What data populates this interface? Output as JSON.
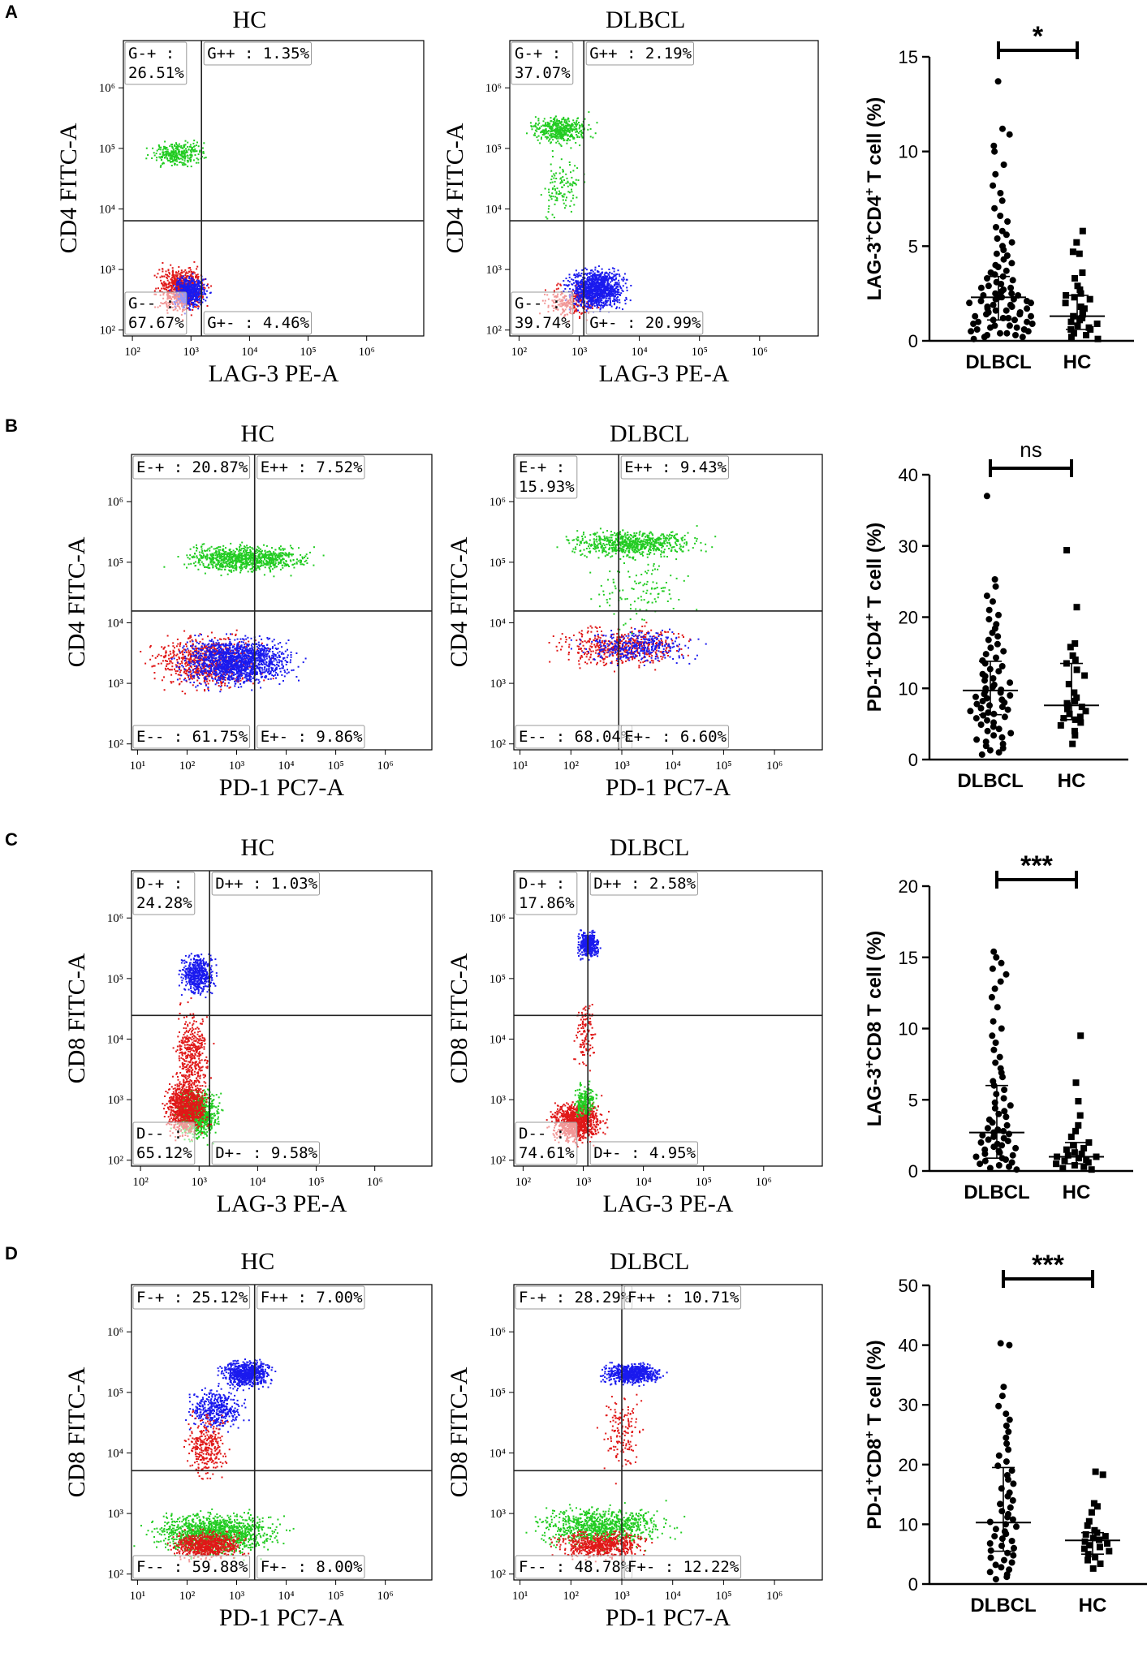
{
  "panels": [
    {
      "letter": "A",
      "flow": [
        {
          "title": "HC",
          "xlabel": "LAG-3 PE-A",
          "ylabel": "CD4 FITC-A",
          "q": [
            "G-+ :",
            "26.51%",
            "G++ : 1.35%",
            "G-- :",
            "67.67%",
            "G+- : 4.46%"
          ]
        },
        {
          "title": "DLBCL",
          "xlabel": "LAG-3 PE-A",
          "ylabel": "CD4 FITC-A",
          "q": [
            "G-+ :",
            "37.07%",
            "G++ : 2.19%",
            "G-- :",
            "39.74%",
            "G+- : 20.99%"
          ]
        }
      ]
    },
    {
      "letter": "B",
      "flow": [
        {
          "title": "HC",
          "xlabel": "PD-1 PC7-A",
          "ylabel": "CD4 FITC-A",
          "q": [
            "E-+ : 20.87%",
            "",
            "E++ : 7.52%",
            "E-- : 61.75%",
            "",
            "E+- : 9.86%"
          ]
        },
        {
          "title": "DLBCL",
          "xlabel": "PD-1 PC7-A",
          "ylabel": "CD4 FITC-A",
          "q": [
            "E-+ :",
            "15.93%",
            "E++ : 9.43%",
            "E-- : 68.04%",
            "",
            "E+- : 6.60%"
          ]
        }
      ]
    },
    {
      "letter": "C",
      "flow": [
        {
          "title": "HC",
          "xlabel": "LAG-3 PE-A",
          "ylabel": "CD8 FITC-A",
          "q": [
            "D-+ :",
            "24.28%",
            "D++ : 1.03%",
            "D-- :",
            "65.12%",
            "D+- : 9.58%"
          ]
        },
        {
          "title": "DLBCL",
          "xlabel": "LAG-3 PE-A",
          "ylabel": "CD8 FITC-A",
          "q": [
            "D-+ :",
            "17.86%",
            "D++ : 2.58%",
            "D-- :",
            "74.61%",
            "D+- : 4.95%"
          ]
        }
      ]
    },
    {
      "letter": "D",
      "flow": [
        {
          "title": "HC",
          "xlabel": "PD-1 PC7-A",
          "ylabel": "CD8 FITC-A",
          "q": [
            "F-+ : 25.12%",
            "",
            "F++ : 7.00%",
            "F-- : 59.88%",
            "",
            "F+- : 8.00%"
          ]
        },
        {
          "title": "DLBCL",
          "xlabel": "PD-1 PC7-A",
          "ylabel": "CD8 FITC-A",
          "q": [
            "F-+ : 28.29%",
            "",
            "F++ : 10.71%",
            "F-- : 48.78%",
            "",
            "F+- : 12.22%"
          ]
        }
      ]
    }
  ],
  "flow_axis": {
    "x_ticks_lag3": [
      "10²",
      "10³",
      "10⁴",
      "10⁵",
      "10⁶"
    ],
    "x_ticks_pd1": [
      "10¹",
      "10²",
      "10³",
      "10⁴",
      "10⁵",
      "10⁶"
    ],
    "y_ticks": [
      "10²",
      "10³",
      "10⁴",
      "10⁵",
      "10⁶"
    ]
  },
  "colors": {
    "green": "#22cc22",
    "blue": "#1a1aee",
    "red": "#e01818",
    "ink": "#000000",
    "gate": "#222222"
  },
  "chart_data": [
    {
      "type": "scatter",
      "title": "",
      "ylabel": "LAG-3⁺CD4⁺ T cell (%)",
      "ylabel_parts": [
        "LAG-3",
        "+",
        "CD4",
        "+",
        " T cell (%)"
      ],
      "categories": [
        "DLBCL",
        "HC"
      ],
      "ylim": [
        0,
        15
      ],
      "yticks": [
        "0",
        "5",
        "10",
        "15"
      ],
      "significance": "*",
      "series": [
        {
          "name": "DLBCL",
          "marker": "circle",
          "median": 2.3,
          "iqr": [
            1.1,
            3.4
          ],
          "values": [
            13.7,
            11.2,
            10.9,
            10.3,
            10.0,
            9.3,
            8.8,
            8.2,
            7.8,
            7.4,
            7.0,
            6.6,
            6.3,
            6.0,
            5.8,
            5.6,
            5.4,
            5.2,
            5.0,
            4.8,
            4.6,
            4.5,
            4.3,
            4.1,
            4.0,
            3.9,
            3.7,
            3.6,
            3.5,
            3.4,
            3.3,
            3.2,
            3.1,
            3.0,
            2.9,
            2.8,
            2.8,
            2.7,
            2.6,
            2.5,
            2.5,
            2.4,
            2.4,
            2.3,
            2.3,
            2.2,
            2.2,
            2.1,
            2.1,
            2.0,
            2.0,
            1.9,
            1.9,
            1.8,
            1.8,
            1.7,
            1.7,
            1.6,
            1.6,
            1.5,
            1.5,
            1.4,
            1.4,
            1.3,
            1.3,
            1.2,
            1.2,
            1.1,
            1.1,
            1.0,
            1.0,
            0.9,
            0.9,
            0.8,
            0.8,
            0.7,
            0.7,
            0.6,
            0.6,
            0.5,
            0.5,
            0.4,
            0.4,
            0.3,
            0.3,
            0.2,
            0.2,
            0.1
          ]
        },
        {
          "name": "HC",
          "marker": "square",
          "median": 1.3,
          "iqr": [
            0.6,
            2.4
          ],
          "values": [
            5.8,
            5.2,
            4.7,
            4.6,
            3.6,
            3.3,
            2.9,
            2.7,
            2.5,
            2.4,
            2.3,
            2.2,
            2.0,
            1.8,
            1.7,
            1.5,
            1.4,
            1.3,
            1.2,
            1.1,
            1.0,
            0.9,
            0.8,
            0.7,
            0.6,
            0.6,
            0.4,
            0.3,
            0.2,
            0.1
          ]
        }
      ]
    },
    {
      "type": "scatter",
      "title": "",
      "ylabel": "PD-1⁺CD4⁺ T cell (%)",
      "ylabel_parts": [
        "PD-1",
        "+",
        "CD4",
        "+",
        " T cell (%)"
      ],
      "categories": [
        "DLBCL",
        "HC"
      ],
      "ylim": [
        0,
        40
      ],
      "yticks": [
        "0",
        "10",
        "20",
        "30",
        "40"
      ],
      "significance": "ns",
      "series": [
        {
          "name": "DLBCL",
          "marker": "circle",
          "median": 9.7,
          "iqr": [
            6.3,
            13.8
          ],
          "values": [
            37.0,
            25.3,
            24.3,
            23.0,
            22.2,
            21.0,
            20.3,
            19.7,
            19.0,
            18.4,
            17.8,
            17.3,
            16.8,
            16.2,
            15.7,
            15.2,
            14.8,
            14.3,
            13.9,
            13.5,
            13.1,
            12.7,
            12.4,
            12.0,
            11.7,
            11.4,
            11.1,
            10.8,
            10.5,
            10.2,
            10.0,
            9.8,
            9.6,
            9.4,
            9.2,
            9.0,
            8.8,
            8.6,
            8.4,
            8.2,
            8.0,
            7.8,
            7.6,
            7.4,
            7.2,
            7.0,
            6.8,
            6.6,
            6.4,
            6.2,
            6.0,
            5.8,
            5.5,
            5.2,
            4.9,
            4.6,
            4.3,
            4.0,
            3.7,
            3.4,
            3.1,
            2.8,
            2.5,
            2.2,
            1.9,
            1.6,
            1.3,
            1.0,
            0.7
          ]
        },
        {
          "name": "HC",
          "marker": "square",
          "median": 7.6,
          "iqr": [
            5.6,
            13.5
          ],
          "values": [
            29.4,
            21.4,
            16.3,
            15.8,
            14.6,
            14.0,
            13.5,
            12.6,
            11.8,
            10.6,
            9.4,
            8.7,
            8.2,
            7.9,
            7.6,
            7.4,
            7.1,
            6.8,
            6.4,
            6.0,
            5.8,
            5.6,
            5.2,
            4.8,
            4.0,
            3.4,
            2.2
          ]
        }
      ]
    },
    {
      "type": "scatter",
      "title": "",
      "ylabel": "LAG-3⁺CD8 T cell (%)",
      "ylabel_parts": [
        "LAG-3",
        "+",
        "CD8 T cell (%)",
        "",
        ""
      ],
      "categories": [
        "DLBCL",
        "HC"
      ],
      "ylim": [
        0,
        20
      ],
      "yticks": [
        "0",
        "5",
        "10",
        "15",
        "20"
      ],
      "significance": "***",
      "series": [
        {
          "name": "DLBCL",
          "marker": "circle",
          "median": 2.7,
          "iqr": [
            0.9,
            6.0
          ],
          "values": [
            15.4,
            15.0,
            14.6,
            14.2,
            13.8,
            13.3,
            12.8,
            12.2,
            11.5,
            10.5,
            10.0,
            9.5,
            9.0,
            8.5,
            8.0,
            7.6,
            7.2,
            6.9,
            6.6,
            6.3,
            6.0,
            5.7,
            5.4,
            5.1,
            4.8,
            4.6,
            4.4,
            4.2,
            4.0,
            3.8,
            3.6,
            3.4,
            3.2,
            3.0,
            2.9,
            2.8,
            2.7,
            2.6,
            2.5,
            2.4,
            2.3,
            2.2,
            2.1,
            2.0,
            1.9,
            1.8,
            1.7,
            1.6,
            1.5,
            1.4,
            1.3,
            1.2,
            1.1,
            1.0,
            0.9,
            0.8,
            0.7,
            0.6,
            0.5,
            0.4,
            0.3,
            0.2,
            0.1
          ]
        },
        {
          "name": "HC",
          "marker": "square",
          "median": 1.0,
          "iqr": [
            0.5,
            2.0
          ],
          "values": [
            9.5,
            6.2,
            4.9,
            3.9,
            3.2,
            2.8,
            2.4,
            2.0,
            1.8,
            1.6,
            1.5,
            1.3,
            1.2,
            1.1,
            1.0,
            1.0,
            0.9,
            0.8,
            0.7,
            0.6,
            0.5,
            0.4,
            0.3,
            0.2,
            0.1
          ]
        }
      ]
    },
    {
      "type": "scatter",
      "title": "",
      "ylabel": "PD-1⁺CD8⁺ T cell (%)",
      "ylabel_parts": [
        "PD-1",
        "+",
        "CD8",
        "+",
        " T cell (%)"
      ],
      "categories": [
        "DLBCL",
        "HC"
      ],
      "ylim": [
        0,
        50
      ],
      "yticks": [
        "0",
        "10",
        "20",
        "30",
        "40",
        "50"
      ],
      "significance": "***",
      "series": [
        {
          "name": "DLBCL",
          "marker": "circle",
          "median": 10.3,
          "iqr": [
            5.5,
            19.5
          ],
          "values": [
            40.3,
            40.0,
            33.0,
            31.5,
            29.8,
            28.5,
            27.5,
            26.5,
            25.5,
            24.5,
            23.5,
            22.5,
            21.5,
            20.5,
            19.8,
            19.0,
            18.2,
            17.5,
            16.8,
            16.0,
            15.3,
            14.7,
            14.0,
            13.4,
            12.8,
            12.2,
            11.7,
            11.2,
            10.8,
            10.4,
            10.0,
            9.6,
            9.2,
            8.8,
            8.4,
            8.0,
            7.6,
            7.2,
            6.8,
            6.4,
            6.0,
            5.6,
            5.2,
            4.8,
            4.4,
            4.0,
            3.6,
            3.2,
            2.8,
            2.4,
            2.0,
            1.6,
            1.2,
            0.8
          ]
        },
        {
          "name": "HC",
          "marker": "square",
          "median": 7.3,
          "iqr": [
            5.0,
            8.6
          ],
          "values": [
            18.8,
            18.3,
            13.5,
            13.0,
            12.0,
            10.5,
            9.8,
            9.0,
            8.6,
            8.3,
            8.0,
            7.7,
            7.4,
            7.1,
            6.8,
            6.5,
            6.2,
            5.9,
            5.5,
            5.0,
            4.5,
            4.0,
            3.4,
            2.6
          ]
        }
      ]
    }
  ]
}
